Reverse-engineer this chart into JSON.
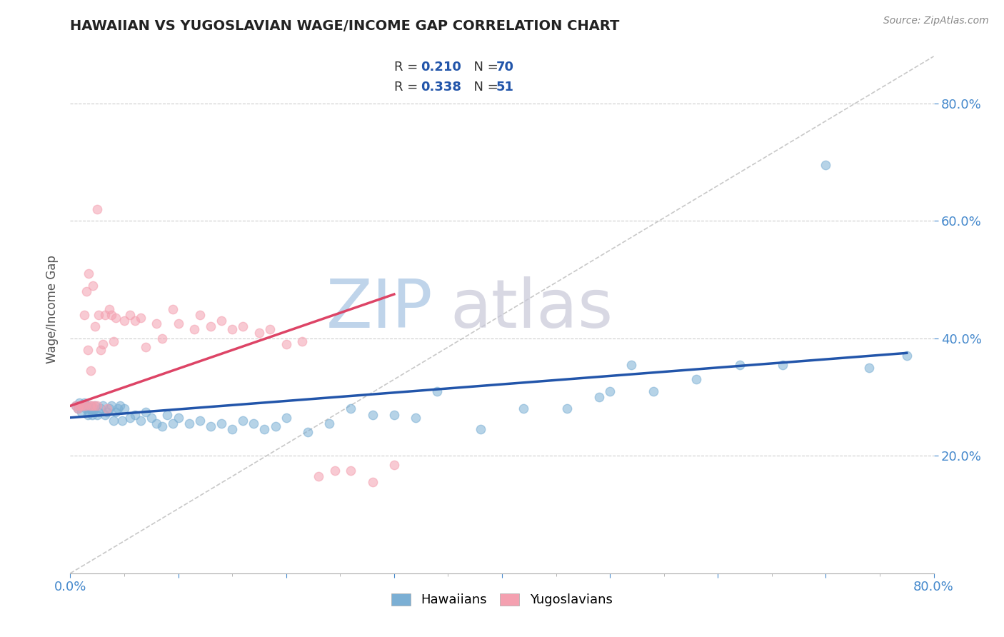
{
  "title": "HAWAIIAN VS YUGOSLAVIAN WAGE/INCOME GAP CORRELATION CHART",
  "source_text": "Source: ZipAtlas.com",
  "ylabel": "Wage/Income Gap",
  "xlim": [
    0.0,
    0.8
  ],
  "ylim": [
    0.0,
    0.9
  ],
  "hawaiian_color": "#7BAFD4",
  "yugoslavian_color": "#F4A0B0",
  "trend1_color": "#2255AA",
  "trend2_color": "#DD4466",
  "watermark_zip": "ZIP",
  "watermark_atlas": "atlas",
  "background_color": "#FFFFFF",
  "hawaiians_label": "Hawaiians",
  "yugoslavians_label": "Yugoslavians",
  "grid_color": "#CCCCCC",
  "legend_text_color": "#2255AA",
  "legend_label_color": "#333333",
  "tick_color": "#4488CC",
  "hawaiian_x": [
    0.005,
    0.007,
    0.008,
    0.01,
    0.012,
    0.013,
    0.014,
    0.015,
    0.016,
    0.017,
    0.018,
    0.019,
    0.02,
    0.021,
    0.022,
    0.023,
    0.025,
    0.026,
    0.028,
    0.03,
    0.032,
    0.034,
    0.036,
    0.038,
    0.04,
    0.042,
    0.044,
    0.046,
    0.048,
    0.05,
    0.055,
    0.06,
    0.065,
    0.07,
    0.075,
    0.08,
    0.085,
    0.09,
    0.095,
    0.1,
    0.11,
    0.12,
    0.13,
    0.14,
    0.15,
    0.16,
    0.17,
    0.18,
    0.19,
    0.2,
    0.22,
    0.24,
    0.26,
    0.28,
    0.3,
    0.32,
    0.34,
    0.38,
    0.42,
    0.46,
    0.5,
    0.54,
    0.58,
    0.62,
    0.66,
    0.7,
    0.74,
    0.775,
    0.49,
    0.52
  ],
  "hawaiian_y": [
    0.285,
    0.28,
    0.29,
    0.275,
    0.285,
    0.29,
    0.28,
    0.285,
    0.27,
    0.275,
    0.28,
    0.285,
    0.27,
    0.275,
    0.28,
    0.285,
    0.27,
    0.275,
    0.28,
    0.285,
    0.27,
    0.275,
    0.28,
    0.285,
    0.26,
    0.275,
    0.28,
    0.285,
    0.26,
    0.28,
    0.265,
    0.27,
    0.26,
    0.275,
    0.265,
    0.255,
    0.25,
    0.27,
    0.255,
    0.265,
    0.255,
    0.26,
    0.25,
    0.255,
    0.245,
    0.26,
    0.255,
    0.245,
    0.25,
    0.265,
    0.24,
    0.255,
    0.28,
    0.27,
    0.27,
    0.265,
    0.31,
    0.245,
    0.28,
    0.28,
    0.31,
    0.31,
    0.33,
    0.355,
    0.355,
    0.695,
    0.35,
    0.37,
    0.3,
    0.355
  ],
  "yugoslavian_x": [
    0.005,
    0.007,
    0.008,
    0.01,
    0.012,
    0.013,
    0.014,
    0.015,
    0.016,
    0.017,
    0.018,
    0.019,
    0.02,
    0.021,
    0.022,
    0.023,
    0.025,
    0.026,
    0.028,
    0.03,
    0.032,
    0.034,
    0.036,
    0.038,
    0.04,
    0.042,
    0.05,
    0.055,
    0.06,
    0.065,
    0.07,
    0.08,
    0.085,
    0.095,
    0.1,
    0.115,
    0.12,
    0.13,
    0.14,
    0.15,
    0.16,
    0.175,
    0.185,
    0.2,
    0.215,
    0.23,
    0.245,
    0.26,
    0.28,
    0.3,
    0.025
  ],
  "yugoslavian_y": [
    0.285,
    0.28,
    0.285,
    0.285,
    0.285,
    0.44,
    0.285,
    0.48,
    0.38,
    0.51,
    0.285,
    0.345,
    0.285,
    0.49,
    0.285,
    0.42,
    0.285,
    0.44,
    0.38,
    0.39,
    0.44,
    0.28,
    0.45,
    0.44,
    0.395,
    0.435,
    0.43,
    0.44,
    0.43,
    0.435,
    0.385,
    0.425,
    0.4,
    0.45,
    0.425,
    0.415,
    0.44,
    0.42,
    0.43,
    0.415,
    0.42,
    0.41,
    0.415,
    0.39,
    0.395,
    0.165,
    0.175,
    0.175,
    0.155,
    0.185,
    0.62
  ],
  "trend_h_x0": 0.0,
  "trend_h_y0": 0.265,
  "trend_h_x1": 0.775,
  "trend_h_y1": 0.375,
  "trend_y_x0": 0.0,
  "trend_y_y0": 0.285,
  "trend_y_x1": 0.3,
  "trend_y_y1": 0.475
}
